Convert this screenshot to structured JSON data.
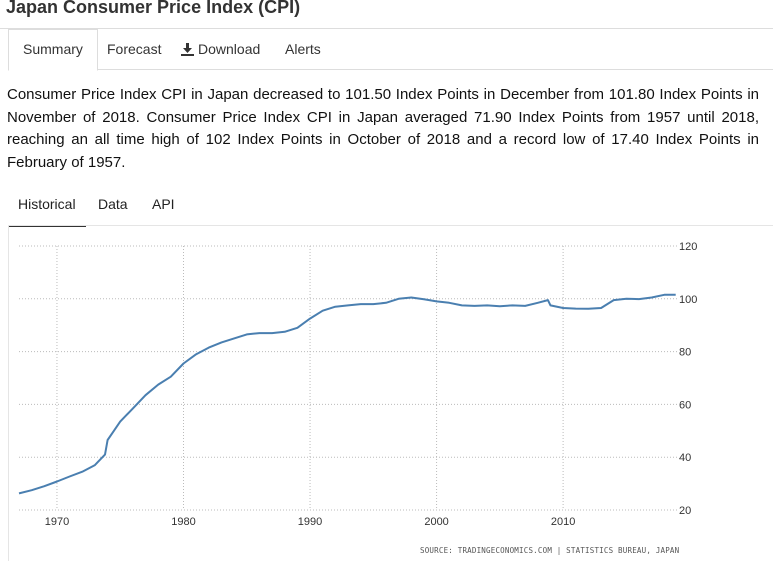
{
  "page": {
    "title": "Japan Consumer Price Index (CPI)"
  },
  "tabs": [
    {
      "label": "Summary",
      "icon": null
    },
    {
      "label": "Forecast",
      "icon": null
    },
    {
      "label": "Download",
      "icon": "download-icon"
    },
    {
      "label": "Alerts",
      "icon": null
    }
  ],
  "summary": "Consumer Price Index CPI in Japan decreased to 101.50 Index Points in December from 101.80 Index Points in November of 2018. Consumer Price Index CPI in Japan averaged 71.90 Index Points from 1957 until 2018, reaching an all time high of 102 Index Points in October of 2018 and a record low of 17.40 Index Points in February of 1957.",
  "subtabs": [
    "Historical",
    "Data",
    "API"
  ],
  "source": "SOURCE: TRADINGECONOMICS.COM | STATISTICS BUREAU, JAPAN",
  "colors": {
    "line": "#4a7fb0",
    "grid": "#bbbbbb",
    "border": "#dddddd"
  },
  "chart_data": {
    "type": "line",
    "title": "",
    "xlabel": "",
    "ylabel": "",
    "xlim": [
      1967,
      2019
    ],
    "ylim": [
      20,
      120
    ],
    "xticks": [
      "1970",
      "1980",
      "1990",
      "2000",
      "2010"
    ],
    "yticks": [
      "20",
      "40",
      "60",
      "80",
      "100",
      "120"
    ],
    "y_axis_side": "right",
    "series": [
      {
        "name": "Japan Consumer Price Index (CPI)",
        "x": [
          1967,
          1968,
          1969,
          1970,
          1971,
          1972,
          1973,
          1973.8,
          1974,
          1974.5,
          1975,
          1976,
          1977,
          1978,
          1979,
          1980,
          1981,
          1982,
          1983,
          1984,
          1985,
          1986,
          1987,
          1988,
          1989,
          1990,
          1991,
          1992,
          1993,
          1994,
          1995,
          1996,
          1997,
          1998,
          1999,
          2000,
          2001,
          2002,
          2003,
          2004,
          2005,
          2006,
          2007,
          2008,
          2008.8,
          2009,
          2010,
          2011,
          2012,
          2013,
          2014,
          2015,
          2016,
          2017,
          2018,
          2018.9
        ],
        "values": [
          26.3,
          27.5,
          29.0,
          30.8,
          32.7,
          34.5,
          37.0,
          41.0,
          46.5,
          50.0,
          53.5,
          58.5,
          63.5,
          67.5,
          70.5,
          75.5,
          79.0,
          81.5,
          83.5,
          85.0,
          86.5,
          87.0,
          87.0,
          87.5,
          89.0,
          92.5,
          95.5,
          97.0,
          97.5,
          98.0,
          98.0,
          98.5,
          100.0,
          100.5,
          99.8,
          99.0,
          98.5,
          97.5,
          97.3,
          97.5,
          97.2,
          97.5,
          97.3,
          98.5,
          99.5,
          97.5,
          96.5,
          96.3,
          96.2,
          96.5,
          99.5,
          100.0,
          99.9,
          100.5,
          101.5,
          101.5
        ]
      }
    ]
  }
}
